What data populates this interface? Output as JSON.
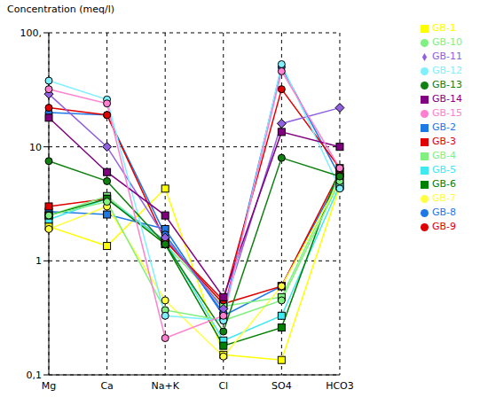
{
  "chart_data": {
    "type": "line",
    "title": "Concentration (meq/l)",
    "categories": [
      "Mg",
      "Ca",
      "Na+K",
      "Cl",
      "SO4",
      "HCO3"
    ],
    "log": "y",
    "grid": true,
    "legend": "right",
    "ylim": [
      0.1,
      100
    ],
    "yticks": [
      {
        "value": 0.1,
        "label": "0,1"
      },
      1,
      10,
      {
        "value": 100,
        "label": "100,"
      }
    ],
    "series": [
      {
        "name": "GB-1",
        "color": "#ffff00",
        "marker": "square",
        "values": [
          2.0,
          1.35,
          4.3,
          0.15,
          0.135,
          4.5
        ]
      },
      {
        "name": "GB-2",
        "color": "#1e78e6",
        "marker": "square",
        "values": [
          2.7,
          2.55,
          1.9,
          0.33,
          0.6,
          5.5
        ]
      },
      {
        "name": "GB-3",
        "color": "#e00000",
        "marker": "square",
        "values": [
          3.0,
          3.5,
          1.5,
          0.42,
          0.6,
          6.0
        ]
      },
      {
        "name": "GB-4",
        "color": "#80f080",
        "marker": "square",
        "values": [
          2.5,
          3.7,
          1.4,
          0.4,
          0.48,
          5.5
        ]
      },
      {
        "name": "GB-5",
        "color": "#40e8f0",
        "marker": "square",
        "values": [
          2.3,
          3.5,
          1.5,
          0.2,
          0.33,
          4.6
        ]
      },
      {
        "name": "GB-6",
        "color": "#008000",
        "marker": "square",
        "values": [
          2.5,
          3.5,
          1.4,
          0.18,
          0.26,
          6.5
        ]
      },
      {
        "name": "GB-7",
        "color": "#ffff40",
        "marker": "circle",
        "values": [
          1.9,
          3.0,
          0.45,
          0.145,
          0.6,
          5.0
        ]
      },
      {
        "name": "GB-8",
        "color": "#1e78e6",
        "marker": "circle",
        "values": [
          20,
          19,
          1.7,
          0.35,
          50,
          5.5
        ]
      },
      {
        "name": "GB-9",
        "color": "#e00000",
        "marker": "circle",
        "values": [
          22,
          19,
          1.5,
          0.45,
          32,
          6.5
        ]
      },
      {
        "name": "GB-10",
        "color": "#80f080",
        "marker": "circle",
        "values": [
          2.5,
          3.3,
          0.37,
          0.3,
          0.45,
          5.0
        ]
      },
      {
        "name": "GB-11",
        "color": "#9060e0",
        "marker": "diamond",
        "values": [
          29,
          10,
          1.6,
          0.38,
          16,
          22
        ]
      },
      {
        "name": "GB-12",
        "color": "#80f0ff",
        "marker": "circle",
        "values": [
          38,
          26,
          0.33,
          0.3,
          53,
          4.3
        ]
      },
      {
        "name": "GB-13",
        "color": "#108010",
        "marker": "circle",
        "values": [
          7.5,
          5.0,
          1.4,
          0.24,
          8,
          5.5
        ]
      },
      {
        "name": "GB-14",
        "color": "#800080",
        "marker": "square",
        "values": [
          18,
          6.0,
          2.5,
          0.48,
          13.5,
          10
        ]
      },
      {
        "name": "GB-15",
        "color": "#ff80d0",
        "marker": "circle",
        "values": [
          32,
          24,
          0.21,
          0.33,
          46,
          6.5
        ]
      }
    ]
  }
}
